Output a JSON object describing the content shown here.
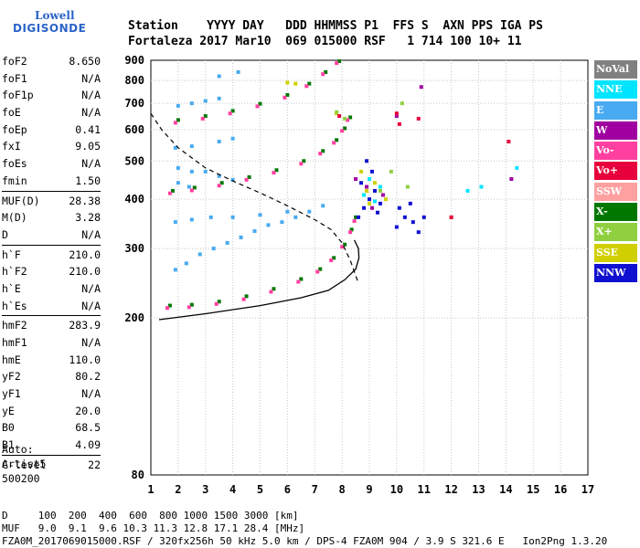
{
  "logo": {
    "line1": "Lowell",
    "line2": "DIGISONDE"
  },
  "header": {
    "line1": "Station    YYYY DAY   DDD HHMMSS P1  FFS S  AXN PPS IGA PS",
    "line2": "Fortaleza 2017 Mar10  069 015000 RSF   1 714 100 10+ 11"
  },
  "params": [
    {
      "group": [
        {
          "name": "foF2",
          "value": "8.650"
        },
        {
          "name": "foF1",
          "value": "N/A"
        },
        {
          "name": "foF1p",
          "value": "N/A"
        },
        {
          "name": "foE",
          "value": "N/A"
        },
        {
          "name": "foEp",
          "value": "0.41"
        },
        {
          "name": "fxI",
          "value": "9.05"
        },
        {
          "name": "foEs",
          "value": "N/A"
        },
        {
          "name": "fmin",
          "value": "1.50"
        }
      ]
    },
    {
      "group": [
        {
          "name": "MUF(D)",
          "value": "28.38"
        },
        {
          "name": "M(D)",
          "value": "3.28"
        },
        {
          "name": "D",
          "value": "N/A"
        }
      ]
    },
    {
      "group": [
        {
          "name": "h`F",
          "value": "210.0"
        },
        {
          "name": "h`F2",
          "value": "210.0"
        },
        {
          "name": "h`E",
          "value": "N/A"
        },
        {
          "name": "h`Es",
          "value": "N/A"
        }
      ]
    },
    {
      "group": [
        {
          "name": "hmF2",
          "value": "283.9"
        },
        {
          "name": "hmF1",
          "value": "N/A"
        },
        {
          "name": "hmE",
          "value": "110.0"
        },
        {
          "name": "yF2",
          "value": "80.2"
        },
        {
          "name": "yF1",
          "value": "N/A"
        },
        {
          "name": "yE",
          "value": "20.0"
        },
        {
          "name": "B0",
          "value": "68.5"
        },
        {
          "name": "B1",
          "value": "4.09"
        }
      ]
    },
    {
      "group": [
        {
          "name": "C-level",
          "value": "22"
        }
      ]
    }
  ],
  "auto": {
    "line1": "Auto:",
    "line2": "Artist5",
    "line3": "500200"
  },
  "legend": [
    {
      "label": "NoVal",
      "color": "#808080"
    },
    {
      "label": "NNE",
      "color": "#00e5ff"
    },
    {
      "label": "E",
      "color": "#48aaf0"
    },
    {
      "label": "W",
      "color": "#a000a0"
    },
    {
      "label": "Vo-",
      "color": "#ff40a0"
    },
    {
      "label": "Vo+",
      "color": "#e8003c"
    },
    {
      "label": "SSW",
      "color": "#ffa0a0"
    },
    {
      "label": "X-",
      "color": "#007800"
    },
    {
      "label": "X+",
      "color": "#90d040"
    },
    {
      "label": "SSE",
      "color": "#d0d000"
    },
    {
      "label": "NNW",
      "color": "#1010d0"
    }
  ],
  "footer": {
    "line1": "D     100  200  400  600  800 1000 1500 3000 [km]",
    "line2": "MUF   9.0  9.1  9.6 10.3 11.3 12.8 17.1 28.4 [MHz]",
    "line3": "FZA0M_2017069015000.RSF / 320fx256h 50 kHz 5.0 km / DPS-4 FZA0M 904 / 3.9 S 321.6 E   Ion2Png 1.3.20"
  },
  "chart_data": {
    "type": "scatter",
    "title": "",
    "xlabel": "",
    "ylabel": "",
    "xlim": [
      1,
      17
    ],
    "ylim": [
      80,
      900
    ],
    "y_scale": "log",
    "x_ticks": [
      1,
      2,
      3,
      4,
      5,
      6,
      7,
      8,
      9,
      10,
      11,
      12,
      13,
      14,
      15,
      16,
      17
    ],
    "y_ticks": [
      80,
      200,
      300,
      400,
      500,
      600,
      700,
      800,
      900
    ],
    "grid": true,
    "series": [
      {
        "name": "X-",
        "color": "#007800",
        "points": [
          [
            1.7,
            215
          ],
          [
            2.5,
            216
          ],
          [
            3.5,
            220
          ],
          [
            4.5,
            227
          ],
          [
            5.5,
            237
          ],
          [
            6.5,
            251
          ],
          [
            7.2,
            266
          ],
          [
            7.7,
            284
          ],
          [
            8.1,
            307
          ],
          [
            8.35,
            335
          ],
          [
            8.5,
            360
          ]
        ]
      },
      {
        "name": "Vo-",
        "color": "#ff40a0",
        "points": [
          [
            1.6,
            212
          ],
          [
            2.4,
            213
          ],
          [
            3.4,
            217
          ],
          [
            4.4,
            223
          ],
          [
            5.4,
            233
          ],
          [
            6.4,
            247
          ],
          [
            7.1,
            262
          ],
          [
            7.6,
            280
          ],
          [
            8.0,
            303
          ],
          [
            8.3,
            330
          ],
          [
            8.45,
            352
          ]
        ]
      },
      {
        "name": "X-",
        "color": "#007800",
        "points": [
          [
            1.8,
            420
          ],
          [
            2.6,
            428
          ],
          [
            3.6,
            440
          ],
          [
            4.6,
            455
          ],
          [
            5.6,
            474
          ],
          [
            6.6,
            500
          ],
          [
            7.3,
            530
          ],
          [
            7.8,
            565
          ],
          [
            8.1,
            605
          ],
          [
            8.3,
            645
          ]
        ]
      },
      {
        "name": "Vo-",
        "color": "#ff40a0",
        "points": [
          [
            1.7,
            414
          ],
          [
            2.5,
            421
          ],
          [
            3.5,
            433
          ],
          [
            4.5,
            448
          ],
          [
            5.5,
            467
          ],
          [
            6.5,
            492
          ],
          [
            7.2,
            522
          ],
          [
            7.7,
            556
          ],
          [
            8.0,
            596
          ],
          [
            8.2,
            635
          ]
        ]
      },
      {
        "name": "X-",
        "color": "#007800",
        "points": [
          [
            2.0,
            635
          ],
          [
            3.0,
            650
          ],
          [
            4.0,
            670
          ],
          [
            5.0,
            698
          ],
          [
            6.0,
            735
          ],
          [
            6.8,
            785
          ],
          [
            7.4,
            840
          ],
          [
            7.9,
            895
          ]
        ]
      },
      {
        "name": "Vo-",
        "color": "#ff40a0",
        "points": [
          [
            1.9,
            625
          ],
          [
            2.9,
            640
          ],
          [
            3.9,
            660
          ],
          [
            4.9,
            688
          ],
          [
            5.9,
            724
          ],
          [
            6.7,
            774
          ],
          [
            7.3,
            830
          ],
          [
            7.8,
            885
          ]
        ]
      },
      {
        "name": "E",
        "color": "#48aaf0",
        "points": [
          [
            1.9,
            265
          ],
          [
            2.3,
            275
          ],
          [
            2.8,
            290
          ],
          [
            3.3,
            300
          ],
          [
            3.8,
            310
          ],
          [
            4.3,
            320
          ],
          [
            4.8,
            332
          ],
          [
            5.3,
            344
          ],
          [
            5.8,
            350
          ],
          [
            6.3,
            360
          ],
          [
            6.8,
            372
          ],
          [
            7.3,
            385
          ],
          [
            1.9,
            350
          ],
          [
            2.5,
            355
          ],
          [
            3.2,
            360
          ],
          [
            4.0,
            360
          ],
          [
            5.0,
            365
          ],
          [
            6.0,
            372
          ],
          [
            2.0,
            480
          ],
          [
            2.5,
            470
          ],
          [
            3.0,
            470
          ],
          [
            3.5,
            458
          ],
          [
            4.0,
            448
          ],
          [
            1.9,
            540
          ],
          [
            2.5,
            545
          ],
          [
            3.5,
            560
          ],
          [
            4.0,
            570
          ],
          [
            2.0,
            690
          ],
          [
            2.5,
            700
          ],
          [
            3.0,
            710
          ],
          [
            3.5,
            720
          ],
          [
            2.0,
            440
          ],
          [
            2.4,
            430
          ],
          [
            3.5,
            820
          ],
          [
            4.2,
            840
          ]
        ]
      },
      {
        "name": "NNW",
        "color": "#1010d0",
        "points": [
          [
            8.6,
            360
          ],
          [
            8.8,
            380
          ],
          [
            9.0,
            400
          ],
          [
            9.2,
            420
          ],
          [
            9.4,
            390
          ],
          [
            8.7,
            440
          ],
          [
            9.1,
            470
          ],
          [
            8.9,
            500
          ],
          [
            9.3,
            370
          ],
          [
            10.0,
            340
          ],
          [
            10.3,
            360
          ],
          [
            10.6,
            350
          ],
          [
            10.8,
            330
          ],
          [
            11.0,
            360
          ],
          [
            10.1,
            380
          ],
          [
            10.5,
            390
          ]
        ]
      },
      {
        "name": "W",
        "color": "#a000a0",
        "points": [
          [
            8.5,
            450
          ],
          [
            8.9,
            430
          ],
          [
            9.1,
            380
          ],
          [
            9.5,
            410
          ],
          [
            10.0,
            650
          ],
          [
            10.9,
            770
          ],
          [
            14.2,
            450
          ]
        ]
      },
      {
        "name": "SSE",
        "color": "#d0d000",
        "points": [
          [
            8.7,
            470
          ],
          [
            8.9,
            420
          ],
          [
            9.2,
            440
          ],
          [
            9.0,
            390
          ],
          [
            9.6,
            400
          ],
          [
            7.8,
            660
          ],
          [
            6.3,
            785
          ],
          [
            6.0,
            790
          ]
        ]
      },
      {
        "name": "NNE",
        "color": "#00e5ff",
        "points": [
          [
            8.8,
            410
          ],
          [
            9.0,
            450
          ],
          [
            9.2,
            395
          ],
          [
            9.4,
            430
          ],
          [
            12.6,
            420
          ],
          [
            13.1,
            430
          ],
          [
            14.4,
            480
          ]
        ]
      },
      {
        "name": "X+",
        "color": "#90d040",
        "points": [
          [
            7.8,
            665
          ],
          [
            8.1,
            640
          ],
          [
            9.4,
            420
          ],
          [
            9.8,
            470
          ],
          [
            10.4,
            430
          ],
          [
            10.2,
            700
          ],
          [
            12.0,
            360
          ]
        ]
      },
      {
        "name": "Vo+",
        "color": "#e8003c",
        "points": [
          [
            7.9,
            650
          ],
          [
            10.0,
            660
          ],
          [
            10.1,
            620
          ],
          [
            10.8,
            640
          ],
          [
            12.0,
            360
          ],
          [
            14.1,
            560
          ]
        ]
      }
    ],
    "profile_line": {
      "name": "profile",
      "color": "#000000",
      "points": [
        [
          1.3,
          198
        ],
        [
          3,
          205
        ],
        [
          5,
          215
        ],
        [
          6.5,
          225
        ],
        [
          7.5,
          235
        ],
        [
          8.1,
          250
        ],
        [
          8.5,
          266
        ],
        [
          8.62,
          284
        ],
        [
          8.6,
          300
        ],
        [
          8.45,
          315
        ]
      ]
    },
    "dashed_line": {
      "name": "MUF",
      "color": "#000000",
      "points": [
        [
          1.0,
          660
        ],
        [
          1.4,
          600
        ],
        [
          2.0,
          540
        ],
        [
          3.0,
          480
        ],
        [
          4.0,
          445
        ],
        [
          5.0,
          415
        ],
        [
          6.0,
          385
        ],
        [
          7.0,
          355
        ],
        [
          7.6,
          335
        ],
        [
          8.0,
          310
        ],
        [
          8.3,
          280
        ],
        [
          8.6,
          245
        ]
      ]
    }
  }
}
